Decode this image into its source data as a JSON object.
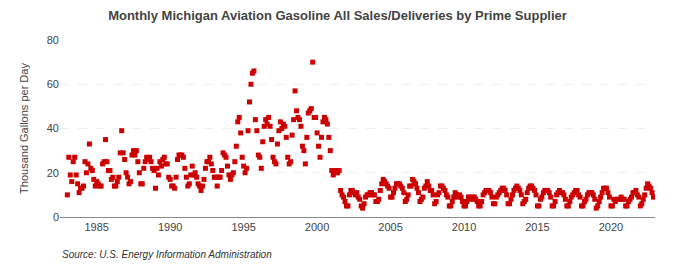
{
  "chart_data": {
    "type": "scatter",
    "title": "Monthly Michigan Aviation Gasoline All Sales/Deliveries by Prime Supplier",
    "y_label": "Thousand Gallons per Day",
    "annotations": [
      "Source: U.S. Energy Information Administration"
    ],
    "color": "#cc0000",
    "marker": "square",
    "grid": true,
    "xlim": [
      1982.5,
      2023.0
    ],
    "ylim": [
      0,
      80
    ],
    "xticks": [
      1985,
      1990,
      1995,
      2000,
      2005,
      2010,
      2015,
      2020
    ],
    "yticks": [
      0,
      20,
      40,
      60,
      80
    ],
    "x": [
      1983.0,
      1983.1,
      1983.2,
      1983.3,
      1983.4,
      1983.5,
      1983.6,
      1983.7,
      1983.8,
      1983.9,
      1984.0,
      1984.1,
      1984.2,
      1984.3,
      1984.4,
      1984.5,
      1984.6,
      1984.7,
      1984.8,
      1984.9,
      1985.0,
      1985.1,
      1985.2,
      1985.3,
      1985.4,
      1985.5,
      1985.6,
      1985.7,
      1985.8,
      1985.9,
      1986.0,
      1986.1,
      1986.2,
      1986.3,
      1986.4,
      1986.5,
      1986.6,
      1986.7,
      1986.8,
      1986.9,
      1987.0,
      1987.1,
      1987.2,
      1987.3,
      1987.4,
      1987.5,
      1987.6,
      1987.7,
      1987.8,
      1987.9,
      1988.0,
      1988.1,
      1988.2,
      1988.3,
      1988.4,
      1988.5,
      1988.6,
      1988.7,
      1988.8,
      1988.9,
      1989.0,
      1989.1,
      1989.2,
      1989.3,
      1989.4,
      1989.5,
      1989.6,
      1989.7,
      1989.8,
      1989.9,
      1990.0,
      1990.1,
      1990.2,
      1990.3,
      1990.4,
      1990.5,
      1990.6,
      1990.7,
      1990.8,
      1990.9,
      1991.0,
      1991.1,
      1991.2,
      1991.3,
      1991.4,
      1991.5,
      1991.6,
      1991.7,
      1991.8,
      1991.9,
      1992.0,
      1992.1,
      1992.2,
      1992.3,
      1992.4,
      1992.5,
      1992.6,
      1992.7,
      1992.8,
      1992.9,
      1993.0,
      1993.1,
      1993.2,
      1993.3,
      1993.4,
      1993.5,
      1993.6,
      1993.7,
      1993.8,
      1993.9,
      1994.0,
      1994.1,
      1994.2,
      1994.3,
      1994.4,
      1994.5,
      1994.6,
      1994.7,
      1994.8,
      1994.9,
      1995.0,
      1995.1,
      1995.2,
      1995.3,
      1995.4,
      1995.5,
      1995.6,
      1995.7,
      1995.8,
      1995.9,
      1996.0,
      1996.1,
      1996.2,
      1996.3,
      1996.4,
      1996.5,
      1996.6,
      1996.7,
      1996.8,
      1996.9,
      1997.0,
      1997.1,
      1997.2,
      1997.3,
      1997.4,
      1997.5,
      1997.6,
      1997.7,
      1997.8,
      1997.9,
      1998.0,
      1998.1,
      1998.2,
      1998.3,
      1998.4,
      1998.5,
      1998.6,
      1998.7,
      1998.8,
      1998.9,
      1999.0,
      1999.1,
      1999.2,
      1999.3,
      1999.4,
      1999.5,
      1999.6,
      1999.7,
      1999.8,
      1999.9,
      2000.0,
      2000.1,
      2000.2,
      2000.3,
      2000.4,
      2000.5,
      2000.6,
      2000.7,
      2000.8,
      2000.9,
      2001.0,
      2001.1,
      2001.2,
      2001.3,
      2001.4,
      2001.5,
      2001.6,
      2001.7,
      2001.8,
      2001.9,
      2002.0,
      2002.1,
      2002.2,
      2002.3,
      2002.4,
      2002.5,
      2002.6,
      2002.7,
      2002.8,
      2002.9,
      2003.0,
      2003.1,
      2003.2,
      2003.3,
      2003.4,
      2003.5,
      2003.6,
      2003.7,
      2003.8,
      2003.9,
      2004.0,
      2004.1,
      2004.2,
      2004.3,
      2004.4,
      2004.5,
      2004.6,
      2004.7,
      2004.8,
      2004.9,
      2005.0,
      2005.1,
      2005.2,
      2005.3,
      2005.4,
      2005.5,
      2005.6,
      2005.7,
      2005.8,
      2005.9,
      2006.0,
      2006.1,
      2006.2,
      2006.3,
      2006.4,
      2006.5,
      2006.6,
      2006.7,
      2006.8,
      2006.9,
      2007.0,
      2007.1,
      2007.2,
      2007.3,
      2007.4,
      2007.5,
      2007.6,
      2007.7,
      2007.8,
      2007.9,
      2008.0,
      2008.1,
      2008.2,
      2008.3,
      2008.4,
      2008.5,
      2008.6,
      2008.7,
      2008.8,
      2008.9,
      2009.0,
      2009.1,
      2009.2,
      2009.3,
      2009.4,
      2009.5,
      2009.6,
      2009.7,
      2009.8,
      2009.9,
      2010.0,
      2010.1,
      2010.2,
      2010.3,
      2010.4,
      2010.5,
      2010.6,
      2010.7,
      2010.8,
      2010.9,
      2011.0,
      2011.1,
      2011.2,
      2011.3,
      2011.4,
      2011.5,
      2011.6,
      2011.7,
      2011.8,
      2011.9,
      2012.0,
      2012.1,
      2012.2,
      2012.3,
      2012.4,
      2012.5,
      2012.6,
      2012.7,
      2012.8,
      2012.9,
      2013.0,
      2013.1,
      2013.2,
      2013.3,
      2013.4,
      2013.5,
      2013.6,
      2013.7,
      2013.8,
      2013.9,
      2014.0,
      2014.1,
      2014.2,
      2014.3,
      2014.4,
      2014.5,
      2014.6,
      2014.7,
      2014.8,
      2014.9,
      2015.0,
      2015.1,
      2015.2,
      2015.3,
      2015.4,
      2015.5,
      2015.6,
      2015.7,
      2015.8,
      2015.9,
      2016.0,
      2016.1,
      2016.2,
      2016.3,
      2016.4,
      2016.5,
      2016.6,
      2016.7,
      2016.8,
      2016.9,
      2017.0,
      2017.1,
      2017.2,
      2017.3,
      2017.4,
      2017.5,
      2017.6,
      2017.7,
      2017.8,
      2017.9,
      2018.0,
      2018.1,
      2018.2,
      2018.3,
      2018.4,
      2018.5,
      2018.6,
      2018.7,
      2018.8,
      2018.9,
      2019.0,
      2019.1,
      2019.2,
      2019.3,
      2019.4,
      2019.5,
      2019.6,
      2019.7,
      2019.8,
      2019.9,
      2020.0,
      2020.1,
      2020.2,
      2020.3,
      2020.4,
      2020.5,
      2020.6,
      2020.7,
      2020.8,
      2020.9,
      2021.0,
      2021.1,
      2021.2,
      2021.3,
      2021.4,
      2021.5,
      2021.6,
      2021.7,
      2021.8,
      2021.9,
      2022.0,
      2022.1,
      2022.2,
      2022.3,
      2022.4,
      2022.5,
      2022.6,
      2022.7,
      2022.8,
      2022.9
    ],
    "values": [
      10,
      27,
      19,
      16,
      25,
      27,
      19,
      15,
      11,
      13,
      13,
      14,
      25,
      20,
      24,
      33,
      22,
      21,
      17,
      14,
      16,
      15,
      14,
      14,
      24,
      25,
      35,
      25,
      21,
      21,
      17,
      18,
      14,
      14,
      16,
      18,
      29,
      39,
      29,
      26,
      20,
      18,
      15,
      16,
      28,
      30,
      28,
      30,
      25,
      20,
      15,
      15,
      22,
      25,
      27,
      26,
      27,
      25,
      22,
      21,
      13,
      22,
      19,
      25,
      23,
      26,
      27,
      24,
      24,
      18,
      17,
      14,
      14,
      13,
      18,
      26,
      28,
      28,
      28,
      27,
      22,
      18,
      14,
      15,
      19,
      23,
      19,
      20,
      18,
      15,
      14,
      12,
      14,
      17,
      22,
      25,
      25,
      27,
      24,
      21,
      18,
      18,
      14,
      18,
      18,
      21,
      29,
      28,
      27,
      23,
      19,
      17,
      19,
      20,
      25,
      32,
      43,
      45,
      38,
      27,
      23,
      20,
      22,
      39,
      52,
      60,
      65,
      66,
      44,
      39,
      28,
      27,
      22,
      34,
      41,
      44,
      42,
      45,
      41,
      35,
      27,
      25,
      24,
      33,
      39,
      43,
      40,
      42,
      41,
      36,
      27,
      24,
      25,
      37,
      44,
      57,
      48,
      45,
      44,
      41,
      32,
      30,
      24,
      36,
      47,
      48,
      49,
      70,
      45,
      45,
      38,
      32,
      27,
      36,
      43,
      45,
      44,
      42,
      36,
      30,
      21,
      19,
      20,
      21,
      20,
      21,
      12,
      10,
      9,
      7,
      5,
      5,
      10,
      12,
      12,
      11,
      10,
      11,
      9,
      8,
      5,
      4,
      6,
      9,
      10,
      10,
      11,
      11,
      10,
      10,
      7,
      7,
      8,
      12,
      15,
      17,
      16,
      15,
      14,
      13,
      9,
      9,
      11,
      13,
      15,
      15,
      15,
      14,
      13,
      11,
      7,
      8,
      10,
      14,
      14,
      17,
      16,
      15,
      13,
      11,
      7,
      8,
      9,
      13,
      14,
      16,
      14,
      12,
      12,
      10,
      6,
      7,
      10,
      11,
      14,
      14,
      13,
      12,
      10,
      9,
      5,
      5,
      7,
      9,
      11,
      10,
      9,
      10,
      9,
      7,
      5,
      5,
      7,
      9,
      9,
      8,
      9,
      9,
      8,
      7,
      5,
      5,
      7,
      10,
      11,
      12,
      12,
      12,
      11,
      9,
      6,
      6,
      9,
      10,
      11,
      12,
      13,
      13,
      12,
      10,
      6,
      6,
      8,
      10,
      12,
      13,
      14,
      13,
      12,
      10,
      6,
      7,
      8,
      11,
      13,
      14,
      14,
      13,
      12,
      10,
      5,
      5,
      8,
      9,
      11,
      12,
      12,
      12,
      11,
      9,
      5,
      5,
      7,
      10,
      11,
      12,
      11,
      11,
      10,
      8,
      5,
      5,
      7,
      9,
      10,
      11,
      12,
      12,
      10,
      9,
      5,
      5,
      7,
      8,
      10,
      11,
      11,
      11,
      10,
      8,
      4,
      5,
      7,
      9,
      11,
      13,
      13,
      13,
      11,
      9,
      5,
      5,
      8,
      7,
      8,
      8,
      8,
      9,
      8,
      8,
      5,
      5,
      7,
      8,
      9,
      11,
      11,
      12,
      10,
      9,
      5,
      6,
      8,
      10,
      13,
      15,
      14,
      13,
      11,
      9
    ]
  }
}
